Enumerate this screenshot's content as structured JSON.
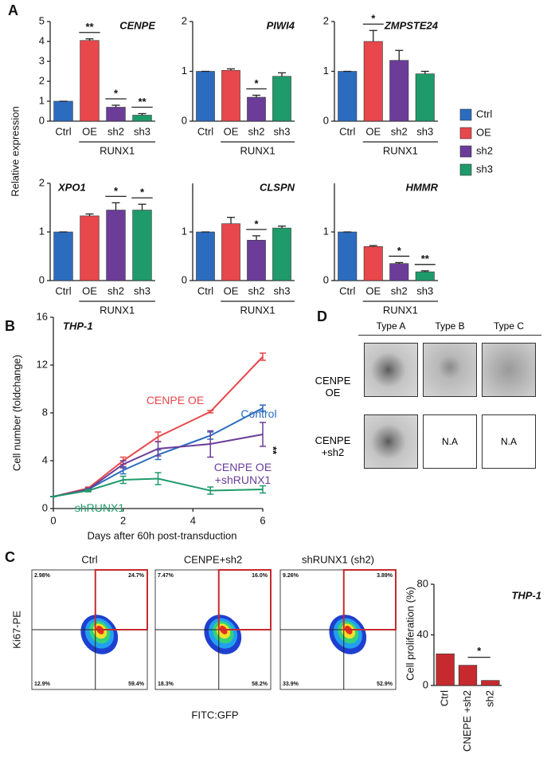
{
  "panel_labels": [
    "A",
    "B",
    "C",
    "D"
  ],
  "panel_a": {
    "y_label": "Relative expression",
    "group_label": "RUNX1",
    "legend": [
      {
        "name": "Ctrl",
        "color": "#2b6cbf"
      },
      {
        "name": "OE",
        "color": "#e8474b"
      },
      {
        "name": "sh2",
        "color": "#6b3d99"
      },
      {
        "name": "sh3",
        "color": "#1f9a6b"
      }
    ]
  },
  "chart_data": [
    {
      "type": "bar",
      "title": "CENPE",
      "categories": [
        "Ctrl",
        "OE",
        "sh2",
        "sh3"
      ],
      "values": [
        1,
        4.05,
        0.7,
        0.3
      ],
      "errors": [
        0,
        0.08,
        0.1,
        0.08
      ],
      "ylim": [
        0,
        5
      ],
      "yticks": [
        0,
        1,
        2,
        3,
        4,
        5
      ],
      "annotations": [
        {
          "category": "OE",
          "label": "**"
        },
        {
          "category": "sh2",
          "label": "*"
        },
        {
          "category": "sh3",
          "label": "**"
        }
      ]
    },
    {
      "type": "bar",
      "title": "PIWI4",
      "categories": [
        "Ctrl",
        "OE",
        "sh2",
        "sh3"
      ],
      "values": [
        1,
        1.02,
        0.48,
        0.9
      ],
      "errors": [
        0,
        0.03,
        0.04,
        0.07
      ],
      "ylim": [
        0,
        2
      ],
      "yticks": [
        0,
        1,
        2
      ],
      "annotations": [
        {
          "category": "sh2",
          "label": "*"
        }
      ]
    },
    {
      "type": "bar",
      "title": "ZMPSTE24",
      "categories": [
        "Ctrl",
        "OE",
        "sh2",
        "sh3"
      ],
      "values": [
        1,
        1.6,
        1.22,
        0.95
      ],
      "errors": [
        0,
        0.22,
        0.2,
        0.05
      ],
      "ylim": [
        0,
        2
      ],
      "yticks": [
        0,
        1,
        2
      ],
      "annotations": [
        {
          "category": "OE",
          "label": "*"
        }
      ]
    },
    {
      "type": "bar",
      "title": "XPO1",
      "categories": [
        "Ctrl",
        "OE",
        "sh2",
        "sh3"
      ],
      "values": [
        1,
        1.33,
        1.45,
        1.45
      ],
      "errors": [
        0,
        0.04,
        0.15,
        0.12
      ],
      "ylim": [
        0,
        2
      ],
      "yticks": [
        0,
        1,
        2
      ],
      "annotations": [
        {
          "category": "sh2",
          "label": "*"
        },
        {
          "category": "sh3",
          "label": "*"
        }
      ]
    },
    {
      "type": "bar",
      "title": "CLSPN",
      "categories": [
        "Ctrl",
        "OE",
        "sh2",
        "sh3"
      ],
      "values": [
        1,
        1.17,
        0.83,
        1.08
      ],
      "errors": [
        0,
        0.13,
        0.09,
        0.04
      ],
      "ylim": [
        0,
        2
      ],
      "yticks": [
        0,
        1
      ],
      "annotations": [
        {
          "category": "sh2",
          "label": "*"
        }
      ]
    },
    {
      "type": "bar",
      "title": "HMMR",
      "categories": [
        "Ctrl",
        "OE",
        "sh2",
        "sh3"
      ],
      "values": [
        1,
        0.7,
        0.35,
        0.18
      ],
      "errors": [
        0,
        0.02,
        0.02,
        0.02
      ],
      "ylim": [
        0,
        2
      ],
      "yticks": [
        0,
        1
      ],
      "annotations": [
        {
          "category": "sh2",
          "label": "*"
        },
        {
          "category": "sh3",
          "label": "**"
        }
      ]
    },
    {
      "type": "line",
      "annotation": "THP-1",
      "x_label": "Days after 60h post-transduction",
      "y_label": "Cell number (foldchange)",
      "significance": "**",
      "x": [
        0,
        1,
        2,
        3,
        4.5,
        6
      ],
      "xlim": [
        0,
        6
      ],
      "xticks": [
        0,
        2,
        4,
        6
      ],
      "ylim": [
        0,
        16
      ],
      "yticks": [
        0,
        4,
        8,
        12,
        16
      ],
      "series": [
        {
          "name": "CENPE OE",
          "color": "#e8474b",
          "values": [
            1,
            1.7,
            4.0,
            6.0,
            8.1,
            12.7
          ],
          "errors": [
            0,
            0.1,
            0.3,
            0.4,
            0.1,
            0.3
          ]
        },
        {
          "name": "Control",
          "color": "#2b6cbf",
          "values": [
            1,
            1.6,
            3.2,
            4.5,
            6.1,
            8.4
          ],
          "errors": [
            0,
            0.1,
            0.3,
            0.4,
            0.3,
            0.25
          ]
        },
        {
          "name": "CENPE OE +shRUNX1",
          "color": "#6b3d99",
          "values": [
            1,
            1.6,
            3.7,
            5.0,
            5.4,
            6.2
          ],
          "errors": [
            0,
            0.1,
            0.3,
            0.6,
            1.1,
            1.0
          ]
        },
        {
          "name": "shRUNX1",
          "color": "#1f9a6b",
          "values": [
            1,
            1.5,
            2.4,
            2.5,
            1.5,
            1.6
          ],
          "errors": [
            0,
            0.1,
            0.3,
            0.5,
            0.3,
            0.3
          ]
        }
      ]
    },
    {
      "type": "bar",
      "title": "THP-1",
      "y_label": "Cell proliferation (%)",
      "categories": [
        "Ctrl",
        "CNEPE +sh2",
        "sh2"
      ],
      "values": [
        25,
        16,
        4
      ],
      "color": "#c62a2f",
      "ylim": [
        0,
        80
      ],
      "yticks": [
        0,
        40,
        80
      ],
      "annotations": [
        {
          "category": "sh2",
          "label": "*"
        }
      ]
    }
  ],
  "flow": {
    "x_label": "FITC:GFP",
    "y_label": "Ki67-PE",
    "plots": [
      {
        "title": "Ctrl",
        "upper_left": "2.98%",
        "upper_right": "24.7%",
        "lower_left": "12.9%",
        "lower_right": "59.4%"
      },
      {
        "title": "CENPE+sh2",
        "upper_left": "7.47%",
        "upper_right": "16.0%",
        "lower_left": "18.3%",
        "lower_right": "58.2%"
      },
      {
        "title": "shRUNX1 (sh2)",
        "upper_left": "9.26%",
        "upper_right": "3.89%",
        "lower_left": "33.9%",
        "lower_right": "52.9%"
      }
    ]
  },
  "panel_d": {
    "columns": [
      "Type A",
      "Type B",
      "Type C"
    ],
    "rows": [
      "CENPE OE",
      "CENPE +sh2"
    ],
    "missing": [
      "N.A",
      "N.A"
    ]
  }
}
